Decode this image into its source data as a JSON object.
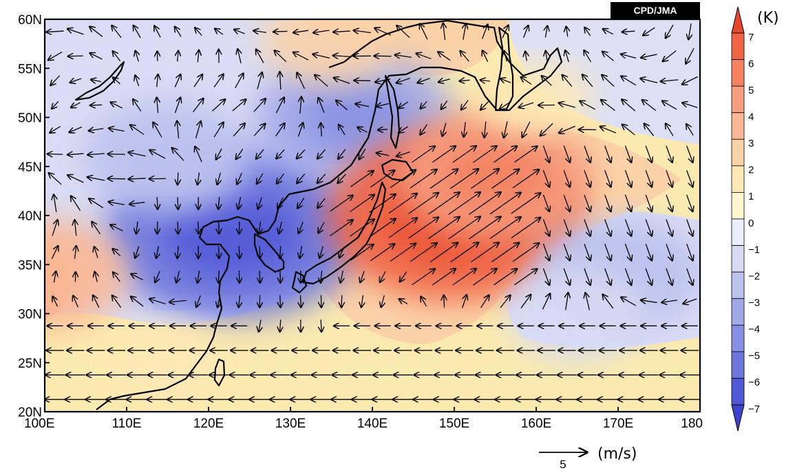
{
  "map": {
    "credit": "CPD/JMA",
    "lat_labels": [
      "60N",
      "55N",
      "50N",
      "45N",
      "40N",
      "35N",
      "30N",
      "25N",
      "20N"
    ],
    "lon_labels": [
      "100E",
      "110E",
      "120E",
      "130E",
      "140E",
      "150E",
      "160E",
      "170E",
      "180"
    ],
    "lon_range": [
      100,
      180
    ],
    "lat_range": [
      20,
      60
    ],
    "field_anomalies": [
      {
        "lon": 123,
        "lat": 38,
        "value": -6
      },
      {
        "lon": 115,
        "lat": 46,
        "value": -3
      },
      {
        "lon": 138,
        "lat": 50,
        "value": -4
      },
      {
        "lon": 150,
        "lat": 40,
        "value": 6
      },
      {
        "lon": 155,
        "lat": 44,
        "value": 4
      },
      {
        "lon": 170,
        "lat": 34,
        "value": -3
      },
      {
        "lon": 165,
        "lat": 30,
        "value": -2
      },
      {
        "lon": 100,
        "lat": 34,
        "value": 3
      },
      {
        "lon": 135,
        "lat": 58,
        "value": 2
      },
      {
        "lon": 160,
        "lat": 52,
        "value": 1
      },
      {
        "lon": 115,
        "lat": 25,
        "value": 1
      }
    ]
  },
  "colorbar": {
    "unit": "(K)",
    "labels": [
      "7",
      "6",
      "5",
      "4",
      "3",
      "2",
      "1",
      "0",
      "−1",
      "−2",
      "−3",
      "−4",
      "−5",
      "−6",
      "−7"
    ],
    "colors": [
      "#e8462b",
      "#ef6444",
      "#f38160",
      "#f69e80",
      "#f9b895",
      "#fbd2a8",
      "#fde8b6",
      "#fff6cf",
      "#eceefa",
      "#d6daf3",
      "#bcc2ee",
      "#a1a8e8",
      "#8790e2",
      "#6b75dc",
      "#5159d6",
      "#3f43d0"
    ]
  },
  "vector_reference": {
    "value": "5",
    "unit": "(m/s)"
  }
}
